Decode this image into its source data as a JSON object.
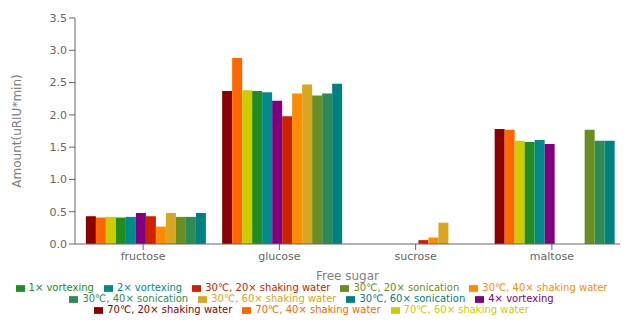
{
  "chart_data": {
    "type": "bar",
    "xlabel": "Free sugar",
    "ylabel": "Amount(uRIU*min)",
    "categories": [
      "fructose",
      "glucose",
      "sucrose",
      "maltose"
    ],
    "series": [
      {
        "name": "70℃, 20× shaking water",
        "color": "#8B0000",
        "values": [
          0.43,
          2.37,
          0.0,
          1.78
        ]
      },
      {
        "name": "70℃, 40× shaking water",
        "color": "#FF6600",
        "values": [
          0.41,
          2.88,
          0.0,
          1.77
        ]
      },
      {
        "name": "70℃, 60× shaking water",
        "color": "#CCCC00",
        "values": [
          0.42,
          2.38,
          0.0,
          1.6
        ]
      },
      {
        "name": "1× vortexing",
        "color": "#228B22",
        "values": [
          0.41,
          2.37,
          0.0,
          1.58
        ]
      },
      {
        "name": "2× vortexing",
        "color": "#008B8B",
        "values": [
          0.42,
          2.35,
          0.0,
          1.61
        ]
      },
      {
        "name": "4× vortexing",
        "color": "#800080",
        "values": [
          0.48,
          2.22,
          0.0,
          1.55
        ]
      },
      {
        "name": "30℃, 20× shaking water",
        "color": "#CC2200",
        "values": [
          0.43,
          1.98,
          0.06,
          0.0
        ]
      },
      {
        "name": "30℃, 40× shaking water",
        "color": "#FF8C00",
        "values": [
          0.27,
          2.33,
          0.1,
          0.0
        ]
      },
      {
        "name": "30℃, 60× shaking water",
        "color": "#DAA520",
        "values": [
          0.48,
          2.47,
          0.33,
          0.0
        ]
      },
      {
        "name": "30℃, 20× sonication",
        "color": "#6B8E23",
        "values": [
          0.42,
          2.3,
          0.0,
          1.77
        ]
      },
      {
        "name": "30℃, 40× sonication",
        "color": "#2E8B57",
        "values": [
          0.42,
          2.33,
          0.0,
          1.6
        ]
      },
      {
        "name": "30℃, 60× sonication",
        "color": "#008080",
        "values": [
          0.48,
          2.48,
          0.0,
          1.6
        ]
      }
    ],
    "ylim": [
      0,
      3.5
    ],
    "yticks": [
      {
        "value": 0.0,
        "label": "0.0"
      },
      0.5,
      {
        "value": 1.0,
        "label": "1.0"
      },
      1.5,
      {
        "value": 2.0,
        "label": "2.0"
      },
      2.5,
      {
        "value": 3.0,
        "label": "3.0"
      },
      3.5
    ],
    "grid": false,
    "legend": "bottom"
  }
}
